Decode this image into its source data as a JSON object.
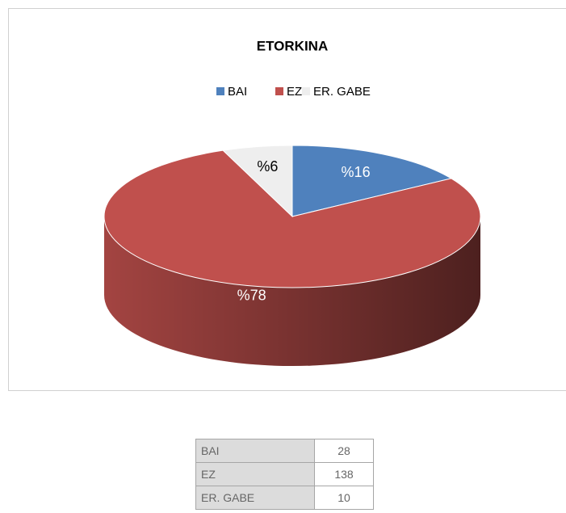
{
  "chart_data": {
    "type": "pie",
    "title": "ETORKINA",
    "categories": [
      "BAI",
      "EZ",
      "ER. GABE"
    ],
    "values": [
      16,
      78,
      6
    ],
    "value_labels": [
      "%16",
      "%78",
      "%6"
    ],
    "colors": [
      "#4f81bd",
      "#c0504d",
      "#eeeeee"
    ]
  },
  "table": {
    "rows": [
      [
        "BAI",
        "28"
      ],
      [
        "EZ",
        "138"
      ],
      [
        "ER. GABE",
        "10"
      ]
    ]
  }
}
